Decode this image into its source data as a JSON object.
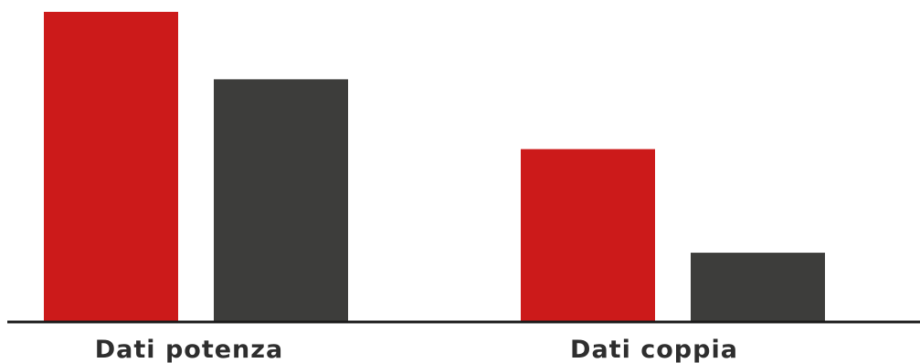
{
  "chart_data": {
    "type": "bar",
    "categories": [
      "Dati potenza",
      "Dati coppia"
    ],
    "series": [
      {
        "color": "#cc1a1a",
        "values": [
          100,
          55.6
        ]
      },
      {
        "color": "#3d3d3b",
        "values": [
          78.2,
          22.1
        ]
      }
    ],
    "ylim": [
      0,
      100
    ],
    "grid": false,
    "legend": "none",
    "axis_color": "#1a1a1a"
  }
}
